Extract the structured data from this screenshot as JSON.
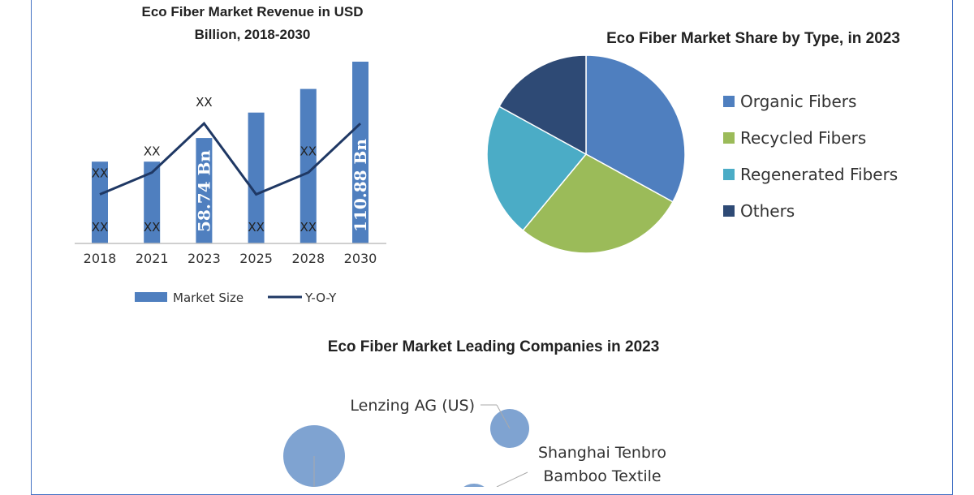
{
  "colors": {
    "bar": "#4f7fbf",
    "line": "#1f3864",
    "organic": "#4f7fbf",
    "recycled": "#9bbb59",
    "regenerated": "#4bacc6",
    "others": "#2e4a75",
    "bubble": "#7fa3d1",
    "frame": "#4472c4"
  },
  "chart_data": [
    {
      "type": "bar",
      "title_line1": "Eco Fiber Market Revenue in USD",
      "title_line2": "Billion, 2018-2030",
      "categories": [
        "2018",
        "2021",
        "2023",
        "2025",
        "2028",
        "2030"
      ],
      "series": [
        {
          "name": "Market Size",
          "values": [
            0.45,
            0.45,
            0.58,
            0.72,
            0.85,
            1.0
          ],
          "bar_labels": [
            "XX",
            "XX",
            "58.74 Bn",
            "XX",
            "XX",
            "110.88 Bn"
          ]
        },
        {
          "name": "Y-O-Y",
          "type": "line",
          "values": [
            0.27,
            0.39,
            0.66,
            0.27,
            0.39,
            0.66
          ],
          "point_labels": [
            "XX",
            "XX",
            "XX",
            "",
            "XX",
            ""
          ]
        }
      ],
      "ylim": [
        0,
        1
      ]
    },
    {
      "type": "pie",
      "title": "Eco Fiber Market Share by Type, in 2023",
      "slices": [
        {
          "label": "Organic Fibers",
          "value": 33
        },
        {
          "label": "Recycled Fibers",
          "value": 28
        },
        {
          "label": "Regenerated Fibers",
          "value": 22
        },
        {
          "label": "Others",
          "value": 17
        }
      ]
    },
    {
      "type": "scatter",
      "title": "Eco Fiber Market Leading Companies in 2023",
      "companies": [
        {
          "line1": "Lenzing AG (US)",
          "line2": ""
        },
        {
          "line1": "Shanghai Tenbro",
          "line2": "Bamboo Textile"
        },
        {
          "line1": "",
          "line2": ""
        }
      ]
    }
  ]
}
